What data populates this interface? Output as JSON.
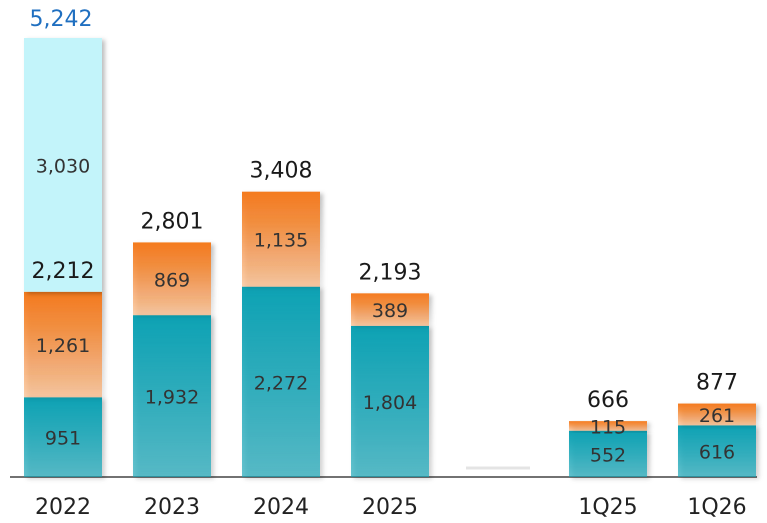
{
  "chart_data": {
    "type": "stacked_bar",
    "categories": [
      "2022",
      "2023",
      "2024",
      "2025",
      null,
      "1Q25",
      "1Q26"
    ],
    "series": [
      {
        "color": "#10a2b4",
        "values": [
          951,
          1932,
          2272,
          1804,
          null,
          552,
          616
        ],
        "value_labels": [
          "951",
          "1,932",
          "2,272",
          "1,804",
          null,
          "552",
          "616"
        ]
      },
      {
        "color": "#f47a1c",
        "values": [
          1261,
          869,
          1135,
          389,
          null,
          115,
          261
        ],
        "value_labels": [
          "1,261",
          "869",
          "1,135",
          "389",
          null,
          "115",
          "261"
        ]
      },
      {
        "color": "#c3f4fa",
        "values": [
          3030,
          null,
          null,
          null,
          null,
          null,
          null
        ],
        "value_labels": [
          "3,030",
          null,
          null,
          null,
          null,
          null,
          null
        ]
      }
    ],
    "totals": {
      "color": "#1a1a1a",
      "values": [
        2212,
        2801,
        3408,
        2193,
        null,
        666,
        877
      ],
      "value_labels": [
        "2,212",
        "2,801",
        "3,408",
        "2,193",
        null,
        "666",
        "877"
      ]
    },
    "grand_totals": {
      "color": "#1f6fc0",
      "values": [
        5242,
        null,
        null,
        null,
        null,
        null,
        null
      ],
      "value_labels": [
        "5,242",
        null,
        null,
        null,
        null,
        null,
        null
      ]
    }
  }
}
